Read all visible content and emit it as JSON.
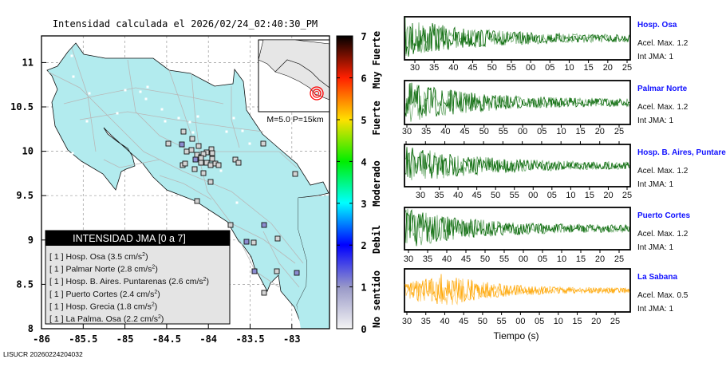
{
  "title": "Intensidad calculada el 2026/02/24_02:40:30_PM",
  "footer": "LISUCR 20260224204032",
  "map": {
    "x_ticks": [
      "-86",
      "-85.5",
      "-85",
      "-84.5",
      "-84",
      "-83.5",
      "-83"
    ],
    "y_ticks": [
      "8",
      "8.5",
      "9",
      "9.5",
      "10",
      "10.5",
      "11"
    ],
    "inset_caption": "M=5.0 P=15km"
  },
  "legend": {
    "title": "INTENSIDAD JMA [0 a 7]",
    "rows": [
      {
        "int": "[ 1 ]",
        "name": "Hosp. Osa",
        "acc": "(3.5 cm/s",
        "sup": "2",
        "close": ")"
      },
      {
        "int": "[ 1 ]",
        "name": "Palmar Norte",
        "acc": "(2.8 cm/s",
        "sup": "2",
        "close": ")"
      },
      {
        "int": "[ 1 ]",
        "name": "Hosp. B. Aires. Puntarenas",
        "acc": "(2.6 cm/s",
        "sup": "2",
        "close": ")"
      },
      {
        "int": "[ 1 ]",
        "name": "Puerto Cortes",
        "acc": "(2.4 cm/s",
        "sup": "2",
        "close": ")"
      },
      {
        "int": "[ 1 ]",
        "name": "Hosp. Grecia",
        "acc": "(1.8 cm/s",
        "sup": "2",
        "close": ")"
      },
      {
        "int": "[ 1 ]",
        "name": "La Palma. Osa",
        "acc": "(2.2 cm/s",
        "sup": "2",
        "close": ")"
      }
    ]
  },
  "colorbar": {
    "ticks": [
      "0",
      "1",
      "2",
      "3",
      "4",
      "5",
      "6",
      "7"
    ],
    "categories": [
      "No sentido",
      "Debil",
      "Moderado",
      "Fuerte",
      "Muy Fuerte"
    ],
    "colors": [
      "#f4f4f4",
      "#9a9ac8",
      "#0000ff",
      "#00ffff",
      "#00ee00",
      "#ffe000",
      "#ff2000",
      "#000000"
    ]
  },
  "waveforms": {
    "time_ticks": [
      "30",
      "35",
      "40",
      "45",
      "50",
      "55",
      "00",
      "05",
      "10",
      "15",
      "20",
      "25"
    ],
    "xlabel": "Tiempo (s)",
    "panels": [
      {
        "station": "Hosp. Osa",
        "acel": "Acel. Max. 1.2",
        "int": "Int JMA: 1",
        "color": "#006400",
        "light": "#6aa86a"
      },
      {
        "station": "Palmar Norte",
        "acel": "Acel. Max. 1.2",
        "int": "Int JMA: 1",
        "color": "#006400",
        "light": "#6aa86a"
      },
      {
        "station": "Hosp. B. Aires, Puntare",
        "acel": "Acel. Max. 1.2",
        "int": "Int JMA: 1",
        "color": "#006400",
        "light": "#6aa86a"
      },
      {
        "station": "Puerto Cortes",
        "acel": "Acel. Max. 1.2",
        "int": "Int JMA: 1",
        "color": "#006400",
        "light": "#6aa86a"
      },
      {
        "station": "La Sabana",
        "acel": "Acel. Max. 0.5",
        "int": "Int JMA: 1",
        "color": "#ffa500",
        "light": "#ffc860"
      }
    ]
  }
}
